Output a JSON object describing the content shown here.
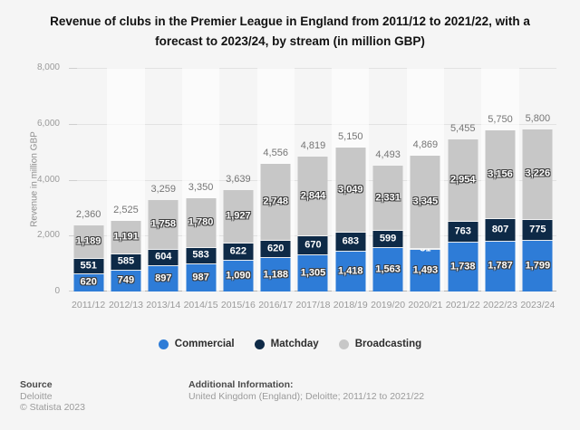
{
  "title": "Revenue of clubs in the Premier League in England from 2011/12 to 2021/22, with a forecast to 2023/24, by stream (in million GBP)",
  "y_axis": {
    "label": "Revenue in million GBP",
    "ticks": [
      "8,000",
      "6,000",
      "4,000",
      "2,000",
      "0"
    ]
  },
  "legend": {
    "items": [
      {
        "label": "Commercial",
        "color": "#2e7cd7"
      },
      {
        "label": "Matchday",
        "color": "#0e2a47"
      },
      {
        "label": "Broadcasting",
        "color": "#c7c7c7"
      }
    ]
  },
  "footer": {
    "source_heading": "Source",
    "source_name": "Deloitte",
    "copyright": "© Statista 2023",
    "additional_heading": "Additional Information:",
    "additional_text": "United Kingdom (England); Deloitte; 2011/12 to 2021/22"
  },
  "chart_data": {
    "type": "bar",
    "stacked": true,
    "title": "Revenue of clubs in the Premier League in England from 2011/12 to 2021/22, with a forecast to 2023/24, by stream (in million GBP)",
    "xlabel": "",
    "ylabel": "Revenue in million GBP",
    "ylim": [
      0,
      8000
    ],
    "grid": true,
    "legend_position": "bottom",
    "categories": [
      "2011/12",
      "2012/13",
      "2013/14",
      "2014/15",
      "2015/16",
      "2016/17",
      "2017/18",
      "2018/19",
      "2019/20",
      "2020/21",
      "2021/22",
      "2022/23",
      "2023/24"
    ],
    "series": [
      {
        "name": "Commercial",
        "color": "#2e7cd7",
        "label_style": "outlined",
        "values": [
          620,
          749,
          897,
          987,
          1090,
          1188,
          1305,
          1418,
          1563,
          1493,
          1738,
          1787,
          1799
        ]
      },
      {
        "name": "Matchday",
        "color": "#0e2a47",
        "label_style": "plain",
        "values": [
          551,
          585,
          604,
          583,
          622,
          620,
          670,
          683,
          599,
          31,
          763,
          807,
          775
        ]
      },
      {
        "name": "Broadcasting",
        "color": "#c7c7c7",
        "label_style": "outlined",
        "values": [
          1189,
          1191,
          1758,
          1780,
          1927,
          2748,
          2844,
          3049,
          2331,
          3345,
          2954,
          3156,
          3226
        ]
      }
    ],
    "totals": [
      2360,
      2525,
      3259,
      3350,
      3639,
      4556,
      4819,
      5150,
      4493,
      4869,
      5455,
      5750,
      5800
    ]
  }
}
